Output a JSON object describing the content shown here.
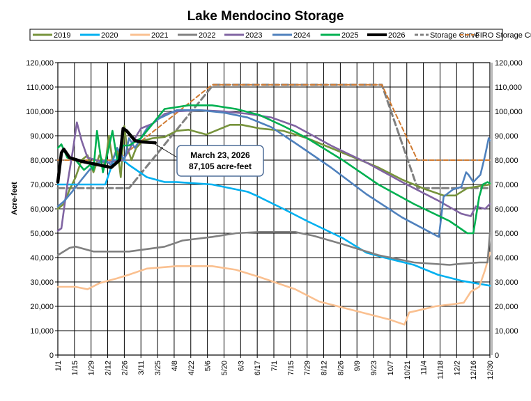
{
  "chart_data": {
    "type": "line",
    "title": "Lake Mendocino Storage",
    "ylabel": "Acre-feet",
    "xlabel": "",
    "ylim": [
      0,
      120000
    ],
    "y_ticks": [
      "0",
      "10,000",
      "20,000",
      "30,000",
      "40,000",
      "50,000",
      "60,000",
      "70,000",
      "80,000",
      "90,000",
      "100,000",
      "110,000",
      "120,000"
    ],
    "x_ticks": [
      "1/1",
      "1/15",
      "1/29",
      "2/12",
      "2/26",
      "3/11",
      "3/25",
      "4/8",
      "4/22",
      "5/6",
      "5/20",
      "6/3",
      "6/17",
      "7/1",
      "7/15",
      "7/29",
      "8/12",
      "8/26",
      "9/9",
      "9/23",
      "10/7",
      "10/21",
      "11/4",
      "11/18",
      "12/2",
      "12/16",
      "12/30"
    ],
    "secondary_y_axis": true,
    "grid": true,
    "legend_position": "top",
    "annotation": {
      "date": "3/23",
      "value": 87105,
      "line1": "March 23, 2026",
      "line2": "87,105 acre-feet"
    },
    "series": [
      {
        "name": "Storage Curve",
        "color": "#808080",
        "style": "dashed",
        "points": [
          [
            "1/1",
            68500
          ],
          [
            "3/1",
            68500
          ],
          [
            "5/11",
            110900
          ],
          [
            "9/30",
            110900
          ],
          [
            "10/30",
            68500
          ],
          [
            "12/30",
            68500
          ]
        ]
      },
      {
        "name": "FIRO Storage Curve",
        "color": "#D07A30",
        "style": "dashed-fine",
        "points": [
          [
            "1/1",
            80000
          ],
          [
            "2/20",
            80000
          ],
          [
            "5/10",
            110900
          ],
          [
            "9/30",
            110900
          ],
          [
            "10/30",
            80000
          ],
          [
            "12/30",
            80000
          ]
        ]
      },
      {
        "name": "2019",
        "color": "#77933C",
        "style": "solid",
        "points": [
          [
            "1/1",
            60000
          ],
          [
            "1/6",
            62000
          ],
          [
            "1/11",
            68000
          ],
          [
            "1/16",
            73000
          ],
          [
            "1/21",
            80000
          ],
          [
            "1/26",
            82000
          ],
          [
            "1/31",
            75000
          ],
          [
            "2/5",
            82000
          ],
          [
            "2/10",
            78000
          ],
          [
            "2/13",
            90000
          ],
          [
            "2/16",
            80000
          ],
          [
            "2/20",
            85000
          ],
          [
            "2/23",
            73000
          ],
          [
            "2/26",
            94000
          ],
          [
            "2/28",
            86000
          ],
          [
            "3/3",
            80000
          ],
          [
            "3/7",
            85000
          ],
          [
            "3/13",
            88000
          ],
          [
            "3/21",
            89000
          ],
          [
            "3/31",
            89500
          ],
          [
            "4/10",
            92000
          ],
          [
            "4/20",
            92500
          ],
          [
            "5/5",
            90500
          ],
          [
            "5/15",
            92500
          ],
          [
            "5/25",
            94500
          ],
          [
            "6/4",
            94500
          ],
          [
            "6/19",
            93000
          ],
          [
            "7/9",
            92000
          ],
          [
            "7/29",
            89000
          ],
          [
            "8/28",
            83000
          ],
          [
            "9/27",
            77000
          ],
          [
            "10/17",
            72000
          ],
          [
            "11/6",
            68000
          ],
          [
            "11/21",
            65500
          ],
          [
            "12/1",
            65500
          ],
          [
            "12/11",
            68500
          ],
          [
            "12/30",
            70000
          ]
        ]
      },
      {
        "name": "2020",
        "color": "#00B0F0",
        "style": "solid",
        "points": [
          [
            "1/1",
            70000
          ],
          [
            "2/10",
            70000
          ],
          [
            "2/17",
            80000
          ],
          [
            "2/25",
            80000
          ],
          [
            "3/1",
            78000
          ],
          [
            "3/16",
            73000
          ],
          [
            "3/31",
            71000
          ],
          [
            "4/10",
            71000
          ],
          [
            "5/10",
            70000
          ],
          [
            "6/9",
            67000
          ],
          [
            "6/16",
            65500
          ],
          [
            "7/9",
            60000
          ],
          [
            "7/29",
            55000
          ],
          [
            "8/28",
            48000
          ],
          [
            "9/17",
            42000
          ],
          [
            "10/2",
            40000
          ],
          [
            "10/27",
            37000
          ],
          [
            "11/16",
            33000
          ],
          [
            "12/6",
            30500
          ],
          [
            "12/30",
            28500
          ]
        ]
      },
      {
        "name": "2021",
        "color": "#FAC090",
        "style": "solid",
        "points": [
          [
            "1/1",
            28000
          ],
          [
            "1/16",
            28000
          ],
          [
            "1/26",
            27000
          ],
          [
            "2/5",
            29500
          ],
          [
            "2/20",
            31500
          ],
          [
            "3/1",
            33000
          ],
          [
            "3/16",
            35500
          ],
          [
            "4/10",
            36500
          ],
          [
            "5/10",
            36500
          ],
          [
            "5/30",
            35000
          ],
          [
            "6/19",
            32000
          ],
          [
            "7/19",
            27000
          ],
          [
            "8/8",
            22000
          ],
          [
            "8/28",
            19500
          ],
          [
            "9/17",
            17000
          ],
          [
            "10/7",
            14500
          ],
          [
            "10/19",
            12500
          ],
          [
            "10/23",
            17500
          ],
          [
            "11/1",
            18500
          ],
          [
            "11/14",
            20000
          ],
          [
            "12/1",
            21000
          ],
          [
            "12/8",
            21500
          ],
          [
            "12/14",
            26000
          ],
          [
            "12/21",
            28000
          ],
          [
            "12/26",
            35000
          ],
          [
            "12/30",
            42000
          ]
        ]
      },
      {
        "name": "2022",
        "color": "#808080",
        "style": "solid",
        "points": [
          [
            "1/1",
            41000
          ],
          [
            "1/11",
            44000
          ],
          [
            "1/16",
            44500
          ],
          [
            "1/31",
            42500
          ],
          [
            "3/1",
            42500
          ],
          [
            "3/31",
            44500
          ],
          [
            "4/15",
            47000
          ],
          [
            "5/10",
            48500
          ],
          [
            "5/30",
            50000
          ],
          [
            "6/19",
            50500
          ],
          [
            "7/19",
            50500
          ],
          [
            "8/3",
            49000
          ],
          [
            "8/28",
            45500
          ],
          [
            "9/27",
            41000
          ],
          [
            "10/27",
            38000
          ],
          [
            "11/26",
            37000
          ],
          [
            "12/6",
            37500
          ],
          [
            "12/21",
            38000
          ],
          [
            "12/28",
            38000
          ],
          [
            "12/30",
            50000
          ]
        ]
      },
      {
        "name": "2023",
        "color": "#8064A2",
        "style": "solid",
        "points": [
          [
            "1/1",
            51000
          ],
          [
            "1/4",
            52000
          ],
          [
            "1/9",
            70000
          ],
          [
            "1/14",
            85000
          ],
          [
            "1/17",
            95500
          ],
          [
            "1/21",
            88000
          ],
          [
            "1/26",
            81000
          ],
          [
            "2/10",
            79000
          ],
          [
            "2/25",
            80000
          ],
          [
            "3/1",
            84000
          ],
          [
            "3/6",
            89000
          ],
          [
            "3/11",
            93000
          ],
          [
            "3/21",
            95000
          ],
          [
            "3/31",
            99000
          ],
          [
            "4/10",
            100000
          ],
          [
            "4/30",
            100500
          ],
          [
            "5/20",
            100000
          ],
          [
            "6/9",
            99000
          ],
          [
            "6/29",
            97500
          ],
          [
            "7/19",
            94000
          ],
          [
            "8/18",
            86000
          ],
          [
            "9/17",
            79000
          ],
          [
            "10/17",
            71000
          ],
          [
            "11/16",
            63500
          ],
          [
            "12/6",
            58000
          ],
          [
            "12/14",
            57000
          ],
          [
            "12/18",
            61000
          ],
          [
            "12/26",
            60000
          ],
          [
            "12/30",
            62000
          ]
        ]
      },
      {
        "name": "2024",
        "color": "#4F81BD",
        "style": "solid",
        "points": [
          [
            "1/1",
            61000
          ],
          [
            "1/6",
            63000
          ],
          [
            "1/13",
            67000
          ],
          [
            "1/21",
            72000
          ],
          [
            "1/31",
            78000
          ],
          [
            "2/10",
            80000
          ],
          [
            "2/15",
            78000
          ],
          [
            "2/20",
            85000
          ],
          [
            "2/26",
            80000
          ],
          [
            "3/1",
            89000
          ],
          [
            "3/6",
            85000
          ],
          [
            "3/16",
            93000
          ],
          [
            "3/26",
            97000
          ],
          [
            "4/10",
            100500
          ],
          [
            "4/30",
            100500
          ],
          [
            "5/20",
            99500
          ],
          [
            "6/9",
            97500
          ],
          [
            "6/29",
            93500
          ],
          [
            "7/19",
            87000
          ],
          [
            "8/18",
            77000
          ],
          [
            "9/17",
            66000
          ],
          [
            "10/17",
            56500
          ],
          [
            "11/17",
            48500
          ],
          [
            "11/21",
            65000
          ],
          [
            "11/29",
            68000
          ],
          [
            "12/6",
            69000
          ],
          [
            "12/10",
            75000
          ],
          [
            "12/12",
            74000
          ],
          [
            "12/16",
            71000
          ],
          [
            "12/22",
            74000
          ],
          [
            "12/26",
            82000
          ],
          [
            "12/29",
            89000
          ],
          [
            "12/30",
            88000
          ]
        ]
      },
      {
        "name": "2025",
        "color": "#00B050",
        "style": "solid",
        "points": [
          [
            "1/1",
            85000
          ],
          [
            "1/4",
            86500
          ],
          [
            "1/9",
            81000
          ],
          [
            "1/16",
            80000
          ],
          [
            "1/23",
            76000
          ],
          [
            "1/28",
            78000
          ],
          [
            "1/31",
            76000
          ],
          [
            "2/3",
            92000
          ],
          [
            "2/8",
            75000
          ],
          [
            "2/12",
            83000
          ],
          [
            "2/16",
            92000
          ],
          [
            "2/20",
            80000
          ],
          [
            "2/25",
            86000
          ],
          [
            "3/1",
            86000
          ],
          [
            "3/11",
            89000
          ],
          [
            "3/21",
            95000
          ],
          [
            "3/31",
            101000
          ],
          [
            "4/20",
            102500
          ],
          [
            "5/10",
            102500
          ],
          [
            "5/30",
            101000
          ],
          [
            "6/19",
            98500
          ],
          [
            "7/9",
            94000
          ],
          [
            "7/29",
            89000
          ],
          [
            "8/28",
            80000
          ],
          [
            "9/27",
            70000
          ],
          [
            "10/27",
            62000
          ],
          [
            "11/26",
            55000
          ],
          [
            "12/11",
            50000
          ],
          [
            "12/16",
            50000
          ],
          [
            "12/21",
            65000
          ],
          [
            "12/24",
            70000
          ],
          [
            "12/28",
            71000
          ],
          [
            "12/30",
            70500
          ]
        ]
      },
      {
        "name": "2026",
        "color": "#000000",
        "style": "bold",
        "points": [
          [
            "1/1",
            71000
          ],
          [
            "1/4",
            83000
          ],
          [
            "1/6",
            84500
          ],
          [
            "1/11",
            81000
          ],
          [
            "1/21",
            79500
          ],
          [
            "2/10",
            77500
          ],
          [
            "2/15",
            77000
          ],
          [
            "2/22",
            80000
          ],
          [
            "2/25",
            93000
          ],
          [
            "2/28",
            92000
          ],
          [
            "3/6",
            88000
          ],
          [
            "3/11",
            87500
          ],
          [
            "3/23",
            87105
          ]
        ]
      }
    ],
    "legend_order": [
      "2019",
      "2020",
      "2021",
      "2022",
      "2023",
      "2024",
      "2025",
      "2026",
      "Storage Curve",
      "FIRO Storage Curve"
    ]
  }
}
